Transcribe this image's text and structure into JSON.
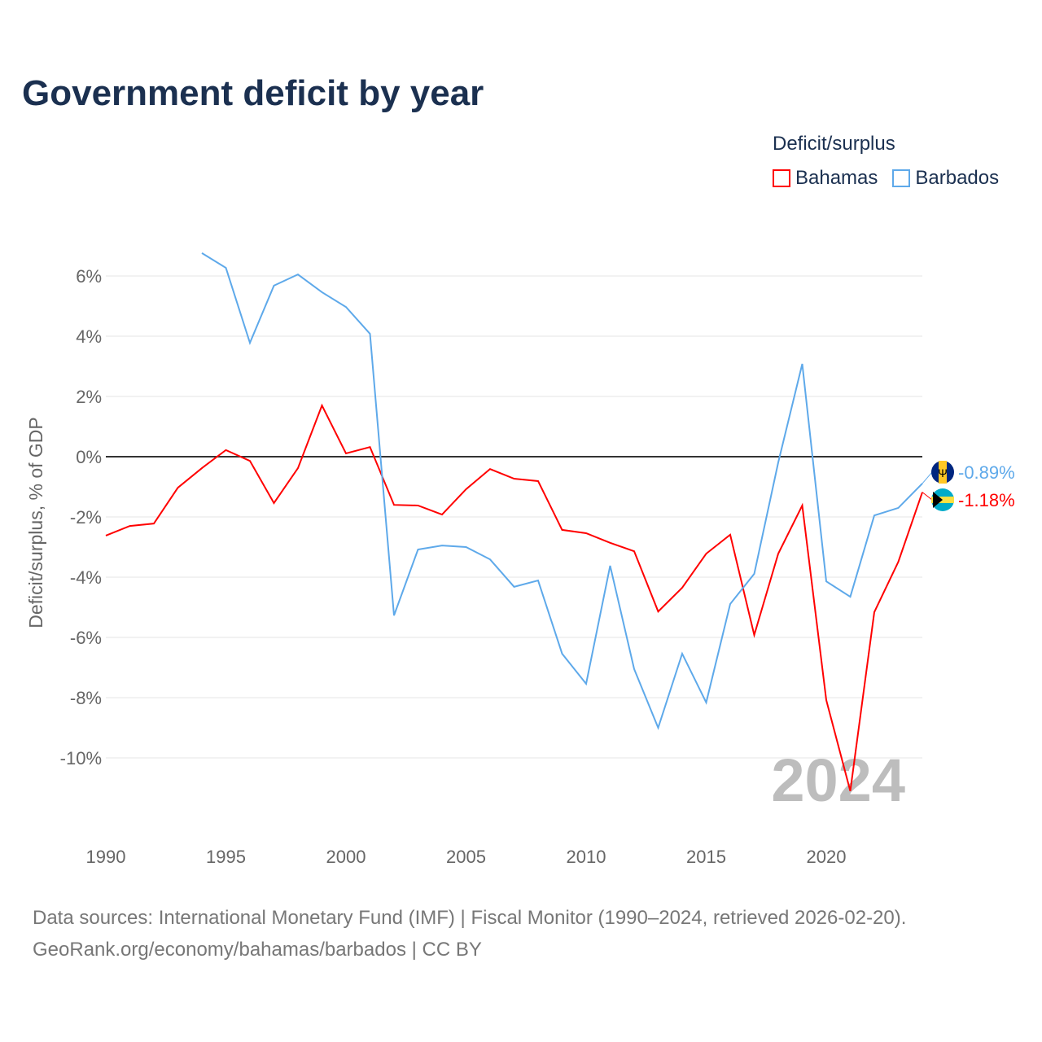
{
  "title": "Government deficit by year",
  "legend": {
    "title": "Deficit/surplus",
    "items": [
      {
        "label": "Bahamas",
        "color": "#ff0000"
      },
      {
        "label": "Barbados",
        "color": "#5ea9ea"
      }
    ]
  },
  "source": {
    "line1": "Data sources: International Monetary Fund (IMF) | Fiscal Monitor (1990–2024, retrieved 2026-02-20).",
    "line2": "GeoRank.org/economy/bahamas/barbados | CC BY"
  },
  "chart_data": {
    "type": "line",
    "title": "Government deficit by year",
    "xlabel": "",
    "ylabel": "Deficit/surplus, % of GDP",
    "xlim": [
      1990,
      2024
    ],
    "ylim": [
      -12,
      7.5
    ],
    "x_ticks": [
      1990,
      1995,
      2000,
      2005,
      2010,
      2015,
      2020
    ],
    "y_ticks": [
      6,
      4,
      2,
      0,
      -2,
      -4,
      -6,
      -8,
      -10
    ],
    "y_tick_labels": [
      "6%",
      "4%",
      "2%",
      "0%",
      "-2%",
      "-4%",
      "-6%",
      "-8%",
      "-10%"
    ],
    "year_watermark": "2024",
    "grid": true,
    "legend_position": "top-right",
    "series": [
      {
        "name": "Bahamas",
        "color": "#ff0000",
        "end_label": "-1.18%",
        "x": [
          1990,
          1991,
          1992,
          1993,
          1994,
          1995,
          1996,
          1997,
          1998,
          1999,
          2000,
          2001,
          2002,
          2003,
          2004,
          2005,
          2006,
          2007,
          2008,
          2009,
          2010,
          2011,
          2012,
          2013,
          2014,
          2015,
          2016,
          2017,
          2018,
          2019,
          2020,
          2021,
          2022,
          2023,
          2024
        ],
        "values": [
          -2.62,
          -2.3,
          -2.22,
          -1.03,
          -0.38,
          0.22,
          -0.14,
          -1.54,
          -0.38,
          1.7,
          0.11,
          0.32,
          -1.6,
          -1.62,
          -1.92,
          -1.08,
          -0.41,
          -0.73,
          -0.81,
          -2.43,
          -2.54,
          -2.86,
          -3.14,
          -5.14,
          -4.35,
          -3.22,
          -2.59,
          -5.92,
          -3.22,
          -1.62,
          -8.08,
          -11.1,
          -5.16,
          -3.49,
          -1.18
        ]
      },
      {
        "name": "Barbados",
        "color": "#5ea9ea",
        "end_label": "-0.89%",
        "x": [
          1994,
          1995,
          1996,
          1997,
          1998,
          1999,
          2000,
          2001,
          2002,
          2003,
          2004,
          2005,
          2006,
          2007,
          2008,
          2009,
          2010,
          2011,
          2012,
          2013,
          2014,
          2015,
          2016,
          2017,
          2018,
          2019,
          2020,
          2021,
          2022,
          2023,
          2024
        ],
        "values": [
          6.76,
          6.27,
          3.78,
          5.68,
          6.05,
          5.46,
          4.97,
          4.08,
          -5.27,
          -3.08,
          -2.95,
          -3.0,
          -3.41,
          -4.32,
          -4.11,
          -6.54,
          -7.54,
          -3.62,
          -7.05,
          -9.0,
          -6.54,
          -8.16,
          -4.89,
          -3.89,
          -0.19,
          3.08,
          -4.14,
          -4.65,
          -1.95,
          -1.7,
          -0.89
        ]
      }
    ]
  }
}
